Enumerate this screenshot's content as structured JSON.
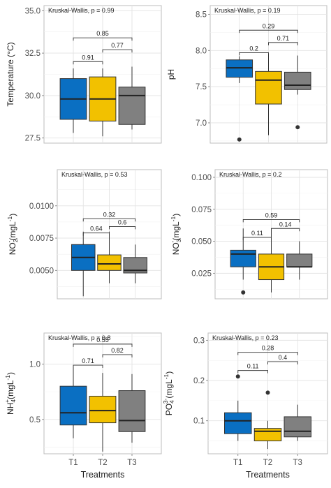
{
  "figure": {
    "xlabel": "Treatments"
  },
  "colors": {
    "T1": "#0a6fc2",
    "T2": "#f2c100",
    "T3": "#808080"
  },
  "chart_data": [
    {
      "type": "box",
      "ylabel": "Temperature (°C)",
      "ylim": [
        27.2,
        35.3
      ],
      "yticks": [
        27.5,
        30.0,
        32.5,
        35.0
      ],
      "ytick_labels": [
        "27.5",
        "30.0",
        "32.5",
        "35.0"
      ],
      "kruskal": "Kruskal-Wallis, p = 0.99",
      "categories": [
        "T1",
        "T2",
        "T3"
      ],
      "show_xticks": false,
      "boxes": [
        {
          "q1": 28.6,
          "median": 29.8,
          "q3": 31.0,
          "whislo": 27.8,
          "whishi": 31.6,
          "outliers": []
        },
        {
          "q1": 28.5,
          "median": 29.8,
          "q3": 31.1,
          "whislo": 27.6,
          "whishi": 31.6,
          "outliers": []
        },
        {
          "q1": 28.3,
          "median": 30.0,
          "q3": 30.5,
          "whislo": 28.0,
          "whishi": 31.7,
          "outliers": []
        }
      ],
      "comparisons": [
        {
          "from": 0,
          "to": 2,
          "y": 33.4,
          "label": "0.85"
        },
        {
          "from": 0,
          "to": 1,
          "y": 32.0,
          "label": "0.91"
        },
        {
          "from": 1,
          "to": 2,
          "y": 32.7,
          "label": "0.77"
        }
      ]
    },
    {
      "type": "box",
      "ylabel": "pH",
      "ylim": [
        6.72,
        8.62
      ],
      "yticks": [
        7.0,
        7.5,
        8.0,
        8.5
      ],
      "ytick_labels": [
        "7.0",
        "7.5",
        "8.0",
        "8.5"
      ],
      "kruskal": "Kruskal-Wallis, p = 0.19",
      "categories": [
        "T1",
        "T2",
        "T3"
      ],
      "show_xticks": false,
      "boxes": [
        {
          "q1": 7.63,
          "median": 7.76,
          "q3": 7.87,
          "whislo": 7.55,
          "whishi": 7.92,
          "outliers": [
            6.77
          ]
        },
        {
          "q1": 7.26,
          "median": 7.59,
          "q3": 7.71,
          "whislo": 6.83,
          "whishi": 7.95,
          "outliers": []
        },
        {
          "q1": 7.46,
          "median": 7.52,
          "q3": 7.7,
          "whislo": 7.39,
          "whishi": 7.93,
          "outliers": [
            6.94
          ]
        }
      ],
      "comparisons": [
        {
          "from": 0,
          "to": 2,
          "y": 8.28,
          "label": "0.29"
        },
        {
          "from": 0,
          "to": 1,
          "y": 7.97,
          "label": "0.2"
        },
        {
          "from": 1,
          "to": 2,
          "y": 8.11,
          "label": "0.71"
        }
      ]
    },
    {
      "type": "box",
      "ylabel": "NO2⁻(mgL⁻¹)",
      "ylabel_parts": {
        "base": "NO",
        "sub": "2",
        "sup1": "-",
        "mid": "(mgL",
        "sup2": "-1",
        "end": ")"
      },
      "ylim": [
        0.0028,
        0.0128
      ],
      "yticks": [
        0.005,
        0.0075,
        0.01
      ],
      "ytick_labels": [
        "0.0050",
        "0.0075",
        "0.0100"
      ],
      "kruskal": "Kruskal-Wallis, p = 0.53",
      "categories": [
        "T1",
        "T2",
        "T3"
      ],
      "show_xticks": false,
      "boxes": [
        {
          "q1": 0.005,
          "median": 0.006,
          "q3": 0.007,
          "whislo": 0.003,
          "whishi": 0.008,
          "outliers": []
        },
        {
          "q1": 0.005,
          "median": 0.0055,
          "q3": 0.0062,
          "whislo": 0.004,
          "whishi": 0.008,
          "outliers": []
        },
        {
          "q1": 0.0048,
          "median": 0.005,
          "q3": 0.006,
          "whislo": 0.004,
          "whishi": 0.007,
          "outliers": []
        }
      ],
      "comparisons": [
        {
          "from": 0,
          "to": 2,
          "y": 0.009,
          "label": "0.32"
        },
        {
          "from": 0,
          "to": 1,
          "y": 0.0079,
          "label": "0.64"
        },
        {
          "from": 1,
          "to": 2,
          "y": 0.0084,
          "label": "0.6"
        }
      ]
    },
    {
      "type": "box",
      "ylabel": "NO3⁻(mgL⁻¹)",
      "ylabel_parts": {
        "base": "NO",
        "sub": "3",
        "sup1": "-",
        "mid": "(mgL",
        "sup2": "-1",
        "end": ")"
      },
      "ylim": [
        0.005,
        0.106
      ],
      "yticks": [
        0.025,
        0.05,
        0.075,
        0.1
      ],
      "ytick_labels": [
        "0.025",
        "0.050",
        "0.075",
        "0.100"
      ],
      "kruskal": "Kruskal-Wallis, p = 0.2",
      "categories": [
        "T1",
        "T2",
        "T3"
      ],
      "show_xticks": false,
      "boxes": [
        {
          "q1": 0.03,
          "median": 0.04,
          "q3": 0.043,
          "whislo": 0.02,
          "whishi": 0.06,
          "outliers": [
            0.01
          ]
        },
        {
          "q1": 0.02,
          "median": 0.03,
          "q3": 0.04,
          "whislo": 0.01,
          "whishi": 0.06,
          "outliers": []
        },
        {
          "q1": 0.03,
          "median": 0.03,
          "q3": 0.04,
          "whislo": 0.02,
          "whishi": 0.05,
          "outliers": []
        }
      ],
      "comparisons": [
        {
          "from": 0,
          "to": 2,
          "y": 0.067,
          "label": "0.59"
        },
        {
          "from": 0,
          "to": 1,
          "y": 0.053,
          "label": "0.11"
        },
        {
          "from": 1,
          "to": 2,
          "y": 0.06,
          "label": "0.14"
        }
      ]
    },
    {
      "type": "box",
      "ylabel": "NH4⁺(mgL⁻¹)",
      "ylabel_parts": {
        "base": "NH",
        "sub": "4",
        "sup1": "+",
        "mid": "(mgL",
        "sup2": "-1",
        "end": ")"
      },
      "ylim": [
        0.19,
        1.28
      ],
      "yticks": [
        0.5,
        1.0
      ],
      "ytick_labels": [
        "0.5",
        "1.0"
      ],
      "kruskal": "Kruskal-Wallis, p = 0.8",
      "categories": [
        "T1",
        "T2",
        "T3"
      ],
      "show_xticks": true,
      "boxes": [
        {
          "q1": 0.45,
          "median": 0.56,
          "q3": 0.8,
          "whislo": 0.33,
          "whishi": 0.98,
          "outliers": []
        },
        {
          "q1": 0.47,
          "median": 0.58,
          "q3": 0.71,
          "whislo": 0.21,
          "whishi": 0.92,
          "outliers": []
        },
        {
          "q1": 0.39,
          "median": 0.49,
          "q3": 0.76,
          "whislo": 0.29,
          "whishi": 0.91,
          "outliers": []
        }
      ],
      "comparisons": [
        {
          "from": 0,
          "to": 2,
          "y": 1.18,
          "label": "0.55"
        },
        {
          "from": 0,
          "to": 1,
          "y": 0.99,
          "label": "0.71"
        },
        {
          "from": 1,
          "to": 2,
          "y": 1.085,
          "label": "0.82"
        }
      ]
    },
    {
      "type": "box",
      "ylabel": "PO4³⁻(mgL⁻¹)",
      "ylabel_parts": {
        "base": "PO",
        "sub": "4",
        "sup1": "3-",
        "mid": "(mgL",
        "sup2": "-1",
        "end": ")"
      },
      "ylim": [
        0.018,
        0.318
      ],
      "yticks": [
        0.1,
        0.2,
        0.3
      ],
      "ytick_labels": [
        "0.1",
        "0.2",
        "0.3"
      ],
      "kruskal": "Kruskal-Wallis, p = 0.23",
      "categories": [
        "T1",
        "T2",
        "T3"
      ],
      "show_xticks": true,
      "boxes": [
        {
          "q1": 0.068,
          "median": 0.1,
          "q3": 0.12,
          "whislo": 0.05,
          "whishi": 0.15,
          "outliers": [
            0.21
          ]
        },
        {
          "q1": 0.05,
          "median": 0.074,
          "q3": 0.081,
          "whislo": 0.03,
          "whishi": 0.1,
          "outliers": [
            0.17
          ]
        },
        {
          "q1": 0.06,
          "median": 0.074,
          "q3": 0.11,
          "whislo": 0.05,
          "whishi": 0.14,
          "outliers": []
        }
      ],
      "comparisons": [
        {
          "from": 0,
          "to": 2,
          "y": 0.27,
          "label": "0.28"
        },
        {
          "from": 0,
          "to": 1,
          "y": 0.225,
          "label": "0.11"
        },
        {
          "from": 1,
          "to": 2,
          "y": 0.247,
          "label": "0.4"
        }
      ]
    }
  ]
}
